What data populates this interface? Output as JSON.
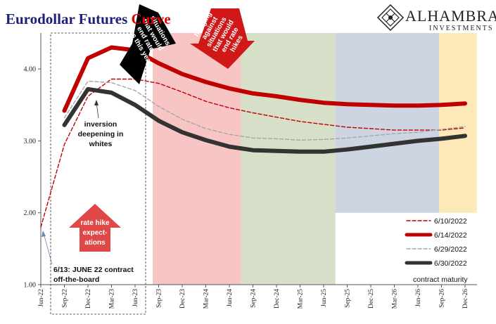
{
  "chart_data": {
    "type": "line",
    "title": "Eurodollar Futures Curve",
    "title_colors": {
      "main": "#1f1f7a",
      "accent": "#e00000"
    },
    "title_parts": [
      "Eurodollar Futures ",
      "Curve"
    ],
    "categories": [
      "Jun-22",
      "Sep-22",
      "Dec-22",
      "Mar-23",
      "Jun-23",
      "Sep-23",
      "Dec-23",
      "Mar-24",
      "Jun-24",
      "Sep-24",
      "Dec-24",
      "Mar-25",
      "Jun-25",
      "Sep-25",
      "Dec-25",
      "Mar-26",
      "Jun-26",
      "Sep-26",
      "Dec-26"
    ],
    "ylim": [
      1.0,
      4.5
    ],
    "yticks": [
      "1.00",
      "2.00",
      "3.00",
      "4.00"
    ],
    "grid": false,
    "legend_position": "bottom-right",
    "series": [
      {
        "name": "6/10/2022",
        "style": "dashed-thin",
        "color": "#c00000",
        "values": [
          1.8,
          2.95,
          3.62,
          3.86,
          3.86,
          3.8,
          3.68,
          3.55,
          3.46,
          3.39,
          3.33,
          3.27,
          3.23,
          3.19,
          3.17,
          3.15,
          3.15,
          3.15,
          3.18
        ]
      },
      {
        "name": "6/14/2022",
        "style": "solid-thick",
        "color": "#c00000",
        "values": [
          null,
          3.42,
          4.15,
          4.3,
          4.26,
          4.08,
          3.93,
          3.82,
          3.73,
          3.66,
          3.62,
          3.57,
          3.53,
          3.51,
          3.5,
          3.49,
          3.49,
          3.5,
          3.52
        ]
      },
      {
        "name": "6/29/2022",
        "style": "dashed-thin",
        "color": "#a6a6a6",
        "values": [
          null,
          3.32,
          3.83,
          3.81,
          3.7,
          3.48,
          3.3,
          3.17,
          3.09,
          3.04,
          3.03,
          3.01,
          3.02,
          3.04,
          3.07,
          3.1,
          3.12,
          3.16,
          3.2
        ]
      },
      {
        "name": "6/30/2022",
        "style": "solid-thick",
        "color": "#333333",
        "values": [
          null,
          3.22,
          3.72,
          3.67,
          3.5,
          3.28,
          3.12,
          3.01,
          2.92,
          2.87,
          2.86,
          2.85,
          2.85,
          2.88,
          2.92,
          2.96,
          3.0,
          3.03,
          3.07
        ]
      }
    ],
    "background_bands": [
      {
        "from": 4.75,
        "to": 8.5,
        "color": "#f8c5c5"
      },
      {
        "from": 8.5,
        "to": 12.5,
        "color": "#d6dfc8"
      },
      {
        "from": 12.5,
        "to": 16.9,
        "color": "#cdd5e3",
        "ymin": 2.0
      },
      {
        "from": 16.9,
        "to": 18.5,
        "color": "#fde9b8",
        "ymin": 2.0
      }
    ],
    "legend_note": "contract maturity",
    "annotations": {
      "inversion": [
        "inversion",
        "deepening in",
        "whites"
      ],
      "june22": [
        "6/13: JUNE 22 contract",
        "off-the-board"
      ],
      "rate_hike": [
        "rate hike",
        "expect-",
        "ations"
      ],
      "black_arrow": [
        "situations",
        "that would",
        "end rate",
        "hikes this year"
      ],
      "red_arrow": [
        "hedging",
        "against",
        "situations",
        "that would",
        "end rate",
        "hikes"
      ]
    }
  },
  "brand": {
    "name": "ALHAMBRA",
    "sub": "INVESTMENTS"
  }
}
